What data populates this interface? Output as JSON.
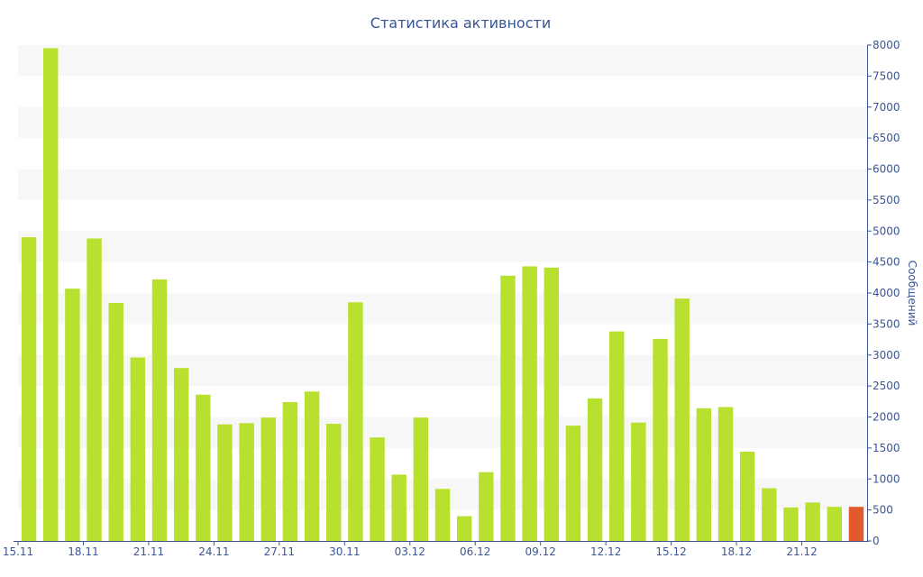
{
  "chart_data": {
    "type": "bar",
    "title": "Статистика активности",
    "ylabel": "Сообщений",
    "y_axis_position": "right",
    "ylim": [
      0,
      8000
    ],
    "y_ticks": [
      "0",
      "500",
      "1000",
      "1500",
      "2000",
      "2500",
      "3000",
      "3500",
      "4000",
      "4500",
      "5000",
      "5500",
      "6000",
      "6500",
      "7000",
      "7500",
      "8000"
    ],
    "categories": [
      "15.11",
      "16.11",
      "17.11",
      "18.11",
      "19.11",
      "20.11",
      "21.11",
      "22.11",
      "23.11",
      "24.11",
      "25.11",
      "26.11",
      "27.11",
      "28.11",
      "29.11",
      "30.11",
      "01.12",
      "02.12",
      "03.12",
      "04.12",
      "05.12",
      "06.12",
      "07.12",
      "08.12",
      "09.12",
      "10.12",
      "11.12",
      "12.12",
      "13.12",
      "14.12",
      "15.12",
      "16.12",
      "17.12",
      "18.12",
      "19.12",
      "20.12",
      "21.12",
      "22.12",
      "23.12"
    ],
    "x_tick_labels": [
      "15.11",
      "18.11",
      "21.11",
      "24.11",
      "27.11",
      "30.11",
      "03.12",
      "06.12",
      "09.12",
      "12.12",
      "15.12",
      "18.12",
      "21.12"
    ],
    "values": [
      4900,
      7950,
      4070,
      4880,
      3840,
      2960,
      4220,
      2790,
      2360,
      1880,
      1900,
      1990,
      2240,
      2410,
      1890,
      3850,
      1670,
      1070,
      1990,
      840,
      400,
      1110,
      4280,
      4430,
      4410,
      1860,
      2300,
      3380,
      1910,
      3260,
      3910,
      2140,
      2160,
      1440,
      850,
      540,
      620,
      550,
      550
    ],
    "colors": {
      "bar": "#b8e02e",
      "current_bar": "#e05a2b",
      "band": "#f7f7f7",
      "text": "#3a5694"
    },
    "grid": "alternating horizontal bands"
  }
}
